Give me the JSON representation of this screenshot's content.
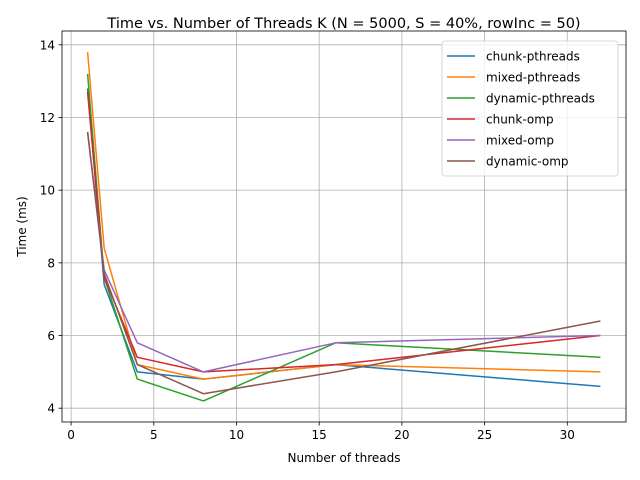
{
  "chart_data": {
    "type": "line",
    "title": "Time vs. Number of Threads K (N = 5000, S = 40%, rowInc = 50)",
    "xlabel": "Number of threads",
    "ylabel": "Time (ms)",
    "xlim": [
      -0.55,
      33.55
    ],
    "ylim": [
      3.62,
      14.38
    ],
    "xticks": [
      0,
      5,
      10,
      15,
      20,
      25,
      30
    ],
    "xtick_labels": [
      "0",
      "5",
      "10",
      "15",
      "20",
      "25",
      "30"
    ],
    "yticks": [
      4,
      6,
      8,
      10,
      12,
      14
    ],
    "ytick_labels": [
      "4",
      "6",
      "8",
      "10",
      "12",
      "14"
    ],
    "grid": true,
    "legend_position": "top-right",
    "x": [
      1,
      2,
      4,
      8,
      16,
      32
    ],
    "series": [
      {
        "name": "chunk-pthreads",
        "color": "#1f77b4",
        "values": [
          12.8,
          7.4,
          5.0,
          4.8,
          5.2,
          4.6
        ]
      },
      {
        "name": "mixed-pthreads",
        "color": "#ff7f0e",
        "values": [
          13.8,
          8.4,
          5.2,
          4.8,
          5.2,
          5.0
        ]
      },
      {
        "name": "dynamic-pthreads",
        "color": "#2ca02c",
        "values": [
          13.2,
          7.6,
          4.8,
          4.2,
          5.8,
          5.4
        ]
      },
      {
        "name": "chunk-omp",
        "color": "#d62728",
        "values": [
          12.7,
          7.6,
          5.4,
          5.0,
          5.2,
          6.0
        ]
      },
      {
        "name": "mixed-omp",
        "color": "#9467bd",
        "values": [
          11.6,
          7.8,
          5.8,
          5.0,
          5.8,
          6.0
        ]
      },
      {
        "name": "dynamic-omp",
        "color": "#8c564b",
        "values": [
          11.6,
          7.7,
          5.2,
          4.4,
          5.0,
          6.4
        ]
      }
    ]
  }
}
